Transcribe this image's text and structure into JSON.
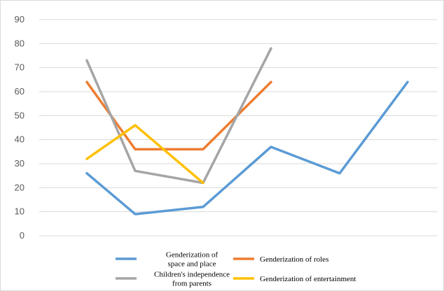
{
  "chart_data": {
    "type": "line",
    "title": "",
    "xlabel": "",
    "ylabel": "",
    "ylim": [
      0,
      90
    ],
    "yticks": [
      0,
      10,
      20,
      30,
      40,
      50,
      60,
      70,
      80,
      90
    ],
    "grid": "horizontal",
    "legend_position": "bottom",
    "x": [
      1,
      2,
      3,
      4,
      5,
      6
    ],
    "series": [
      {
        "name": "Genderization of space and place",
        "legend_lines": [
          "Genderization of",
          "space and place"
        ],
        "color": "#5b9bd5",
        "values": [
          26,
          9,
          12,
          37,
          26,
          64
        ]
      },
      {
        "name": "Genderization of roles",
        "legend_lines": [
          "Genderization of roles"
        ],
        "color": "#ed7d31",
        "values": [
          64,
          36,
          36,
          64,
          null,
          null
        ]
      },
      {
        "name": "Children's independence from parents",
        "legend_lines": [
          "Children's independence",
          "from parents"
        ],
        "color": "#a5a5a5",
        "values": [
          73,
          27,
          22,
          78,
          null,
          null
        ]
      },
      {
        "name": "Genderization of entertainment",
        "legend_lines": [
          "Genderization of entertainment"
        ],
        "color": "#ffc000",
        "values": [
          32,
          46,
          22,
          null,
          null,
          null
        ]
      }
    ]
  }
}
